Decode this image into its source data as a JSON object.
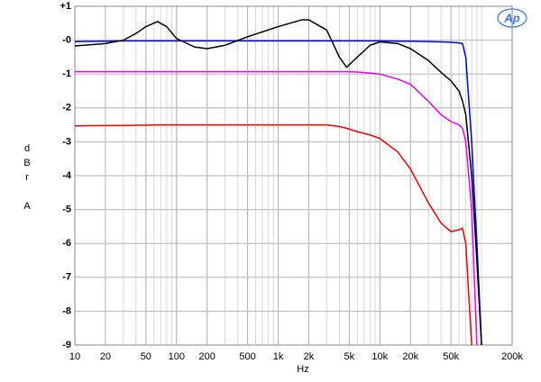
{
  "chart_data": {
    "type": "line",
    "xlabel": "Hz",
    "ylabel": [
      "d",
      "B",
      "r",
      "A"
    ],
    "logo": "Ap",
    "xlog": true,
    "grid": true,
    "x": [
      10,
      20,
      30,
      40,
      50,
      65,
      80,
      100,
      150,
      200,
      300,
      500,
      1000,
      1700,
      2000,
      3000,
      4000,
      4700,
      6000,
      8000,
      10000,
      15000,
      20000,
      30000,
      40000,
      50000,
      60000,
      65000,
      70000,
      80000,
      90000,
      100000
    ],
    "series": [
      {
        "color": "#0000cc",
        "values": [
          -0.04,
          -0.03,
          -0.02,
          -0.02,
          -0.02,
          -0.02,
          -0.02,
          -0.02,
          -0.02,
          -0.02,
          -0.02,
          -0.02,
          -0.02,
          -0.02,
          -0.02,
          -0.02,
          -0.02,
          -0.02,
          -0.02,
          -0.02,
          -0.02,
          -0.03,
          -0.03,
          -0.04,
          -0.05,
          -0.06,
          -0.08,
          -0.1,
          -0.5,
          -3,
          -6,
          -9
        ]
      },
      {
        "color": "#000000",
        "values": [
          -0.17,
          -0.1,
          0.0,
          0.2,
          0.4,
          0.55,
          0.4,
          0.05,
          -0.2,
          -0.25,
          -0.15,
          0.1,
          0.4,
          0.6,
          0.6,
          0.3,
          -0.5,
          -0.8,
          -0.5,
          -0.15,
          -0.05,
          -0.1,
          -0.25,
          -0.6,
          -0.95,
          -1.2,
          -1.5,
          -1.8,
          -2.2,
          -4,
          -6.5,
          -9
        ]
      },
      {
        "color": "#ee00ee",
        "values": [
          -0.93,
          -0.93,
          -0.93,
          -0.93,
          -0.93,
          -0.93,
          -0.93,
          -0.93,
          -0.93,
          -0.93,
          -0.93,
          -0.93,
          -0.93,
          -0.93,
          -0.93,
          -0.93,
          -0.93,
          -0.93,
          -0.94,
          -0.97,
          -1.0,
          -1.15,
          -1.3,
          -1.8,
          -2.2,
          -2.4,
          -2.5,
          -2.6,
          -3,
          -5,
          -9,
          null
        ]
      },
      {
        "color": "#ee0000",
        "values": [
          -2.53,
          -2.52,
          -2.52,
          -2.51,
          -2.51,
          -2.5,
          -2.5,
          -2.5,
          -2.5,
          -2.5,
          -2.5,
          -2.5,
          -2.5,
          -2.5,
          -2.5,
          -2.5,
          -2.55,
          -2.6,
          -2.7,
          -2.8,
          -2.9,
          -3.3,
          -3.8,
          -4.8,
          -5.4,
          -5.65,
          -5.6,
          -5.55,
          -6,
          -9,
          null,
          null
        ]
      }
    ],
    "xlim": [
      10,
      200000
    ],
    "xticks": [
      10,
      20,
      50,
      100,
      200,
      500,
      {
        "value": 1000,
        "label": "1k"
      },
      {
        "value": 2000,
        "label": "2k"
      },
      {
        "value": 5000,
        "label": "5k"
      },
      {
        "value": 10000,
        "label": "10k"
      },
      {
        "value": 20000,
        "label": "20k"
      },
      {
        "value": 50000,
        "label": "50k"
      },
      {
        "value": 200000,
        "label": "200k"
      }
    ],
    "ylim": [
      -9,
      1
    ],
    "yticks": [
      {
        "value": 1,
        "label": "+1"
      },
      {
        "value": 0,
        "label": "-0"
      },
      -1,
      -2,
      -3,
      -4,
      -5,
      -6,
      -7,
      -8,
      -9
    ]
  }
}
